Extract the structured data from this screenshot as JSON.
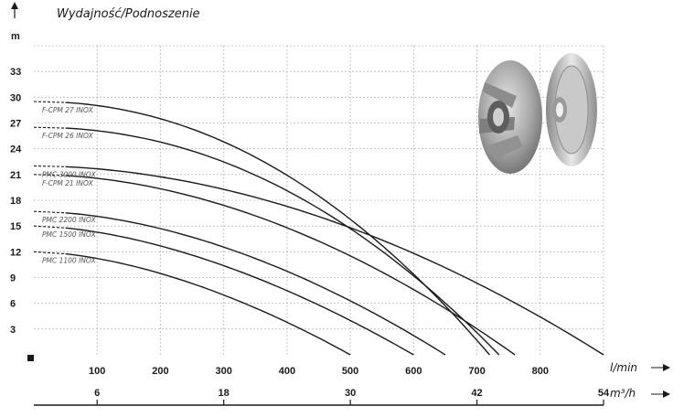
{
  "chart_data": {
    "type": "line",
    "title": "Wydajność/Podnoszenie",
    "ylabel": "m",
    "xlabel": "l/min",
    "x2label": "m³/h",
    "ylim": [
      0,
      36
    ],
    "xlim": [
      0,
      900
    ],
    "y_ticks": [
      3,
      6,
      9,
      12,
      15,
      18,
      21,
      24,
      27,
      30,
      33
    ],
    "x_ticks": [
      100,
      200,
      300,
      400,
      500,
      600,
      700,
      800
    ],
    "x2_ticks": [
      6,
      18,
      30,
      42,
      54
    ],
    "x2_ticks_lmin": [
      100,
      300,
      500,
      700,
      900
    ],
    "grid": true,
    "series": [
      {
        "name": "F-CPM 27 INOX",
        "shutoff": 29.5,
        "flow_max": 720,
        "exp": 2.1
      },
      {
        "name": "F-CPM 26 INOX",
        "shutoff": 26.5,
        "flow_max": 735,
        "exp": 2.1
      },
      {
        "name": "PMC 3000 INOX",
        "shutoff": 22.0,
        "flow_max": 900,
        "exp": 1.9
      },
      {
        "name": "F-CPM 21 INOX",
        "shutoff": 21.0,
        "flow_max": 760,
        "exp": 1.9
      },
      {
        "name": "PMC 2200 INOX",
        "shutoff": 16.7,
        "flow_max": 650,
        "exp": 1.8
      },
      {
        "name": "PMC 1500 INOX",
        "shutoff": 15.0,
        "flow_max": 600,
        "exp": 1.7
      },
      {
        "name": "PMC 1100 INOX",
        "shutoff": 12.0,
        "flow_max": 500,
        "exp": 1.7
      }
    ]
  },
  "icons": {
    "impeller": "pump-impeller-image",
    "axis_arrow": "arrow-right-icon",
    "y_arrow": "arrow-up-icon"
  },
  "colors": {
    "curve": "#1a1a1a",
    "grid": "#b9b9b9"
  }
}
